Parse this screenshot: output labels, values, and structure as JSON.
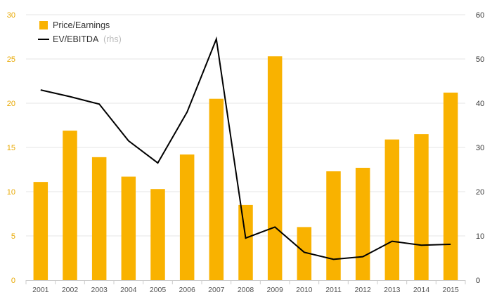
{
  "chart_data": {
    "type": "bar+line",
    "categories": [
      "2001",
      "2002",
      "2003",
      "2004",
      "2005",
      "2006",
      "2007",
      "2008",
      "2009",
      "2010",
      "2011",
      "2012",
      "2013",
      "2014",
      "2015"
    ],
    "series": [
      {
        "name": "Price/Earnings",
        "type": "bar",
        "axis": "left",
        "color": "#f9b200",
        "values": [
          11.1,
          16.9,
          13.9,
          11.7,
          10.3,
          14.2,
          20.5,
          8.5,
          25.3,
          6.0,
          12.3,
          12.7,
          15.9,
          16.5,
          21.2
        ]
      },
      {
        "name": "EV/EBITDA",
        "name_suffix": "(rhs)",
        "type": "line",
        "axis": "right",
        "color": "#000000",
        "values": [
          43.0,
          41.5,
          39.8,
          31.5,
          26.5,
          38.0,
          54.5,
          9.5,
          12.0,
          6.3,
          4.7,
          5.3,
          8.8,
          7.9,
          8.1
        ]
      }
    ],
    "y_left": {
      "ylim": [
        0,
        30
      ],
      "ticks": [
        "0",
        "5",
        "10",
        "15",
        "20",
        "25",
        "30"
      ],
      "tick_values": [
        0,
        5,
        10,
        15,
        20,
        25,
        30
      ],
      "color": "#e8a800"
    },
    "y_right": {
      "ylim": [
        0,
        60
      ],
      "ticks": [
        "0",
        "10",
        "20",
        "30",
        "40",
        "50",
        "60"
      ],
      "tick_values": [
        0,
        10,
        20,
        30,
        40,
        50,
        60
      ]
    },
    "grid": true,
    "legend_position": "top-left"
  }
}
